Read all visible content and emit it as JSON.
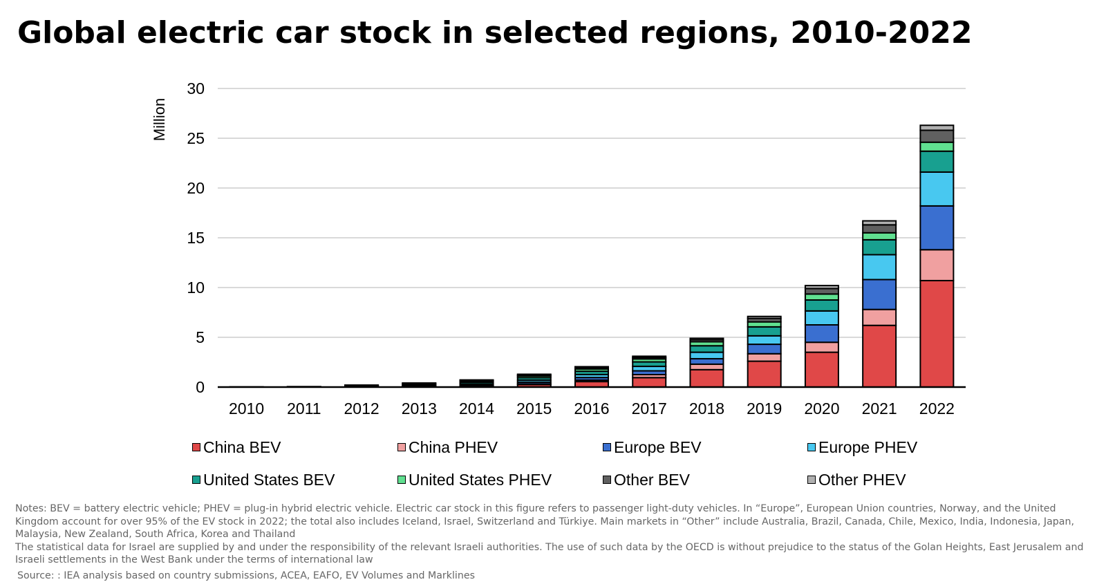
{
  "title": "Global electric car stock in selected regions, 2010-2022",
  "chart_data": {
    "type": "bar",
    "stacked": true,
    "ylabel": "Million",
    "xlabel": "",
    "ylim": [
      0,
      30
    ],
    "yticks": [
      0,
      5,
      10,
      15,
      20,
      25,
      30
    ],
    "grid": "horizontal",
    "legend_position": "bottom",
    "categories": [
      "2010",
      "2011",
      "2012",
      "2013",
      "2014",
      "2015",
      "2016",
      "2017",
      "2018",
      "2019",
      "2020",
      "2021",
      "2022"
    ],
    "series": [
      {
        "name": "China BEV",
        "color": "#e04848",
        "values": [
          0.01,
          0.01,
          0.02,
          0.03,
          0.08,
          0.25,
          0.55,
          0.95,
          1.75,
          2.6,
          3.5,
          6.2,
          10.7
        ]
      },
      {
        "name": "China PHEV",
        "color": "#f0a0a0",
        "values": [
          0.0,
          0.0,
          0.0,
          0.01,
          0.03,
          0.07,
          0.15,
          0.3,
          0.55,
          0.75,
          1.0,
          1.6,
          3.1
        ]
      },
      {
        "name": "Europe BEV",
        "color": "#3a6fd0",
        "values": [
          0.0,
          0.01,
          0.03,
          0.06,
          0.1,
          0.18,
          0.26,
          0.38,
          0.55,
          0.95,
          1.75,
          3.0,
          4.4
        ]
      },
      {
        "name": "Europe PHEV",
        "color": "#48c8f0",
        "values": [
          0.0,
          0.0,
          0.03,
          0.06,
          0.1,
          0.2,
          0.3,
          0.45,
          0.65,
          0.85,
          1.4,
          2.5,
          3.4
        ]
      },
      {
        "name": "United States BEV",
        "color": "#18a090",
        "values": [
          0.0,
          0.01,
          0.03,
          0.1,
          0.17,
          0.25,
          0.33,
          0.45,
          0.65,
          0.9,
          1.1,
          1.5,
          2.1
        ]
      },
      {
        "name": "United States PHEV",
        "color": "#60e090",
        "values": [
          0.0,
          0.0,
          0.03,
          0.07,
          0.12,
          0.17,
          0.23,
          0.3,
          0.4,
          0.5,
          0.6,
          0.7,
          0.9
        ]
      },
      {
        "name": "Other BEV",
        "color": "#606060",
        "values": [
          0.01,
          0.02,
          0.05,
          0.06,
          0.08,
          0.1,
          0.13,
          0.15,
          0.2,
          0.35,
          0.55,
          0.8,
          1.2
        ]
      },
      {
        "name": "Other PHEV",
        "color": "#b0b0b0",
        "values": [
          0.0,
          0.0,
          0.01,
          0.02,
          0.04,
          0.07,
          0.1,
          0.12,
          0.15,
          0.2,
          0.3,
          0.4,
          0.5
        ]
      }
    ]
  },
  "notes": [
    "Notes: BEV = battery electric vehicle; PHEV = plug-in hybrid electric vehicle. Electric car stock in this figure refers to passenger light-duty vehicles. In “Europe”, European Union countries, Norway, and the United Kingdom account for over 95% of the EV stock in 2022; the total also includes Iceland, Israel, Switzerland and Türkiye. Main markets in “Other” include Australia, Brazil, Canada, Chile, Mexico, India, Indonesia, Japan, Malaysia, New Zealand, South Africa, Korea and Thailand",
    "The statistical data for Israel are supplied by and under the responsibility of the relevant Israeli authorities. The use of such data by the OECD is without prejudice to the status of the Golan Heights, East Jerusalem and Israeli settlements in the West Bank under the terms of international law"
  ],
  "source": "Source: : IEA analysis based on country submissions, ACEA, EAFO, EV Volumes and Marklines"
}
